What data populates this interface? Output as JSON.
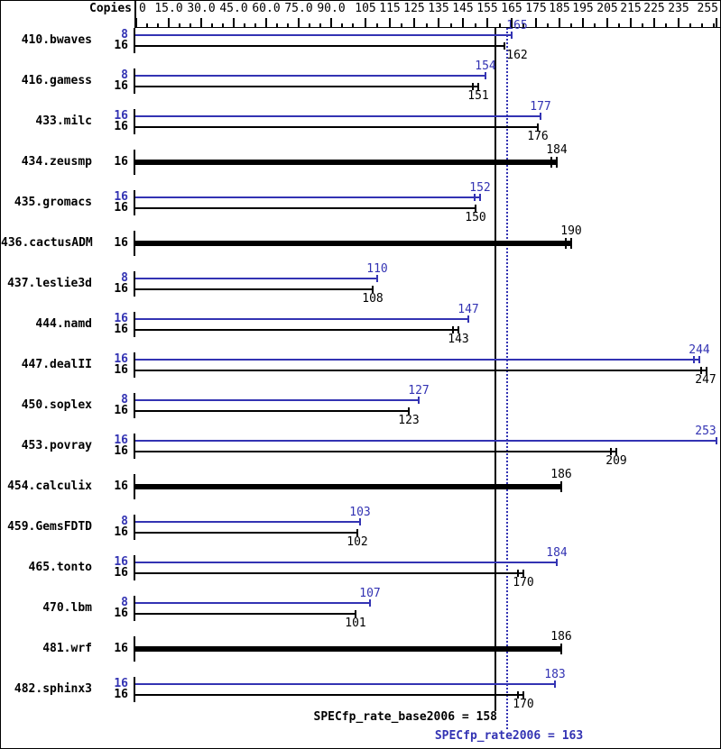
{
  "header": {
    "copies_label": "Copies"
  },
  "footer": {
    "base_label": "SPECfp_rate_base2006 = 158",
    "peak_label": "SPECfp_rate2006 = 163"
  },
  "colors": {
    "peak_blue": "#3333b3",
    "base_black": "#000000"
  },
  "chart_data": {
    "type": "bar",
    "orientation": "horizontal",
    "copies_column_header": "Copies",
    "axis": {
      "minor_tick_step": 5,
      "max_tick_value": 255,
      "labeled_ticks": [
        {
          "value": 0,
          "label": "0"
        },
        {
          "value": 15,
          "label": "15.0"
        },
        {
          "value": 30,
          "label": "30.0"
        },
        {
          "value": 45,
          "label": "45.0"
        },
        {
          "value": 60,
          "label": "60.0"
        },
        {
          "value": 75,
          "label": "75.0"
        },
        {
          "value": 90,
          "label": "90.0"
        },
        {
          "value": 105,
          "label": "105"
        },
        {
          "value": 115,
          "label": "115"
        },
        {
          "value": 125,
          "label": "125"
        },
        {
          "value": 135,
          "label": "135"
        },
        {
          "value": 145,
          "label": "145"
        },
        {
          "value": 155,
          "label": "155"
        },
        {
          "value": 165,
          "label": "165"
        },
        {
          "value": 175,
          "label": "175"
        },
        {
          "value": 185,
          "label": "185"
        },
        {
          "value": 195,
          "label": "195"
        },
        {
          "value": 205,
          "label": "205"
        },
        {
          "value": 215,
          "label": "215"
        },
        {
          "value": 225,
          "label": "225"
        },
        {
          "value": 235,
          "label": "235"
        },
        {
          "value": 255,
          "label": "255"
        }
      ]
    },
    "reference_lines": [
      {
        "name": "base",
        "value": 158,
        "style": "solid",
        "color": "#000000"
      },
      {
        "name": "peak",
        "value": 163,
        "style": "dotted",
        "color": "#3333b3"
      }
    ],
    "summary": {
      "base": 158,
      "peak": 163
    },
    "benchmarks": [
      {
        "name": "410.bwaves",
        "rows": [
          {
            "type": "peak",
            "copies": 8,
            "value": 165,
            "ldx": 6
          },
          {
            "type": "base",
            "copies": 16,
            "value": 162,
            "ldx": 14
          }
        ]
      },
      {
        "name": "416.gamess",
        "rows": [
          {
            "type": "peak",
            "copies": 8,
            "value": 154
          },
          {
            "type": "base",
            "copies": 16,
            "value": 151,
            "marks": true
          }
        ]
      },
      {
        "name": "433.milc",
        "rows": [
          {
            "type": "peak",
            "copies": 16,
            "value": 177
          },
          {
            "type": "base",
            "copies": 16,
            "value": 176
          }
        ]
      },
      {
        "name": "434.zeusmp",
        "rows": [
          {
            "type": "single",
            "copies": 16,
            "value": 184,
            "marks": true
          }
        ]
      },
      {
        "name": "435.gromacs",
        "rows": [
          {
            "type": "peak",
            "copies": 16,
            "value": 152,
            "marks": true
          },
          {
            "type": "base",
            "copies": 16,
            "value": 150
          }
        ]
      },
      {
        "name": "436.cactusADM",
        "rows": [
          {
            "type": "single",
            "copies": 16,
            "value": 190,
            "marks": true
          }
        ]
      },
      {
        "name": "437.leslie3d",
        "rows": [
          {
            "type": "peak",
            "copies": 8,
            "value": 110
          },
          {
            "type": "base",
            "copies": 16,
            "value": 108
          }
        ]
      },
      {
        "name": "444.namd",
        "rows": [
          {
            "type": "peak",
            "copies": 16,
            "value": 147
          },
          {
            "type": "base",
            "copies": 16,
            "value": 143,
            "marks": true
          }
        ]
      },
      {
        "name": "447.dealII",
        "rows": [
          {
            "type": "peak",
            "copies": 16,
            "value": 244,
            "marks": true
          },
          {
            "type": "base",
            "copies": 16,
            "value": 247,
            "marks": true
          }
        ]
      },
      {
        "name": "450.soplex",
        "rows": [
          {
            "type": "peak",
            "copies": 8,
            "value": 127
          },
          {
            "type": "base",
            "copies": 16,
            "value": 123
          }
        ]
      },
      {
        "name": "453.povray",
        "rows": [
          {
            "type": "peak",
            "copies": 16,
            "value": 253
          },
          {
            "type": "base",
            "copies": 16,
            "value": 209,
            "marks": true
          }
        ]
      },
      {
        "name": "454.calculix",
        "rows": [
          {
            "type": "single",
            "copies": 16,
            "value": 186
          }
        ]
      },
      {
        "name": "459.GemsFDTD",
        "rows": [
          {
            "type": "peak",
            "copies": 8,
            "value": 103
          },
          {
            "type": "base",
            "copies": 16,
            "value": 102
          }
        ]
      },
      {
        "name": "465.tonto",
        "rows": [
          {
            "type": "peak",
            "copies": 16,
            "value": 184
          },
          {
            "type": "base",
            "copies": 16,
            "value": 170,
            "marks": true
          }
        ]
      },
      {
        "name": "470.lbm",
        "rows": [
          {
            "type": "peak",
            "copies": 8,
            "value": 107
          },
          {
            "type": "base",
            "copies": 16,
            "value": 101
          }
        ]
      },
      {
        "name": "481.wrf",
        "rows": [
          {
            "type": "single",
            "copies": 16,
            "value": 186
          }
        ]
      },
      {
        "name": "482.sphinx3",
        "rows": [
          {
            "type": "peak",
            "copies": 16,
            "value": 183
          },
          {
            "type": "base",
            "copies": 16,
            "value": 170,
            "marks": true
          }
        ]
      }
    ]
  }
}
